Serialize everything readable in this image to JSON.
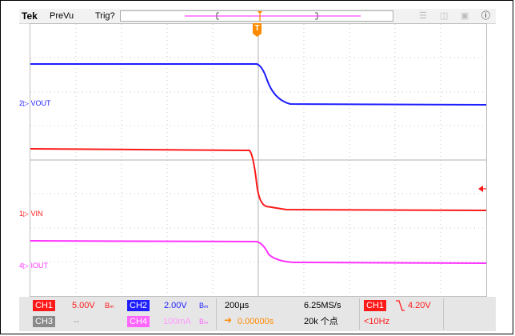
{
  "header": {
    "brand": "Tek",
    "mode": "PreVu",
    "trigger_status": "Trig?",
    "trigger_marker": "T",
    "icons": [
      "wifi-icon",
      "network-icon",
      "clipboard-icon",
      "help-icon"
    ]
  },
  "channels": {
    "ch2": {
      "marker": "2",
      "label": "VOUT",
      "color": "#1e1eff"
    },
    "ch1": {
      "marker": "1",
      "label": "VIN",
      "color": "#ff1a1a"
    },
    "ch4": {
      "marker": "4",
      "label": "IOUT",
      "color": "#ff33ff"
    }
  },
  "status": {
    "ch1_label": "CH1",
    "ch1_scale": "5.00V",
    "ch1_coupling": "Bₘ",
    "ch2_label": "CH2",
    "ch2_scale": "2.00V",
    "ch2_coupling": "Bₘ",
    "ch3_label": "CH3",
    "ch3_scale": "--",
    "ch4_label": "CH4",
    "ch4_scale": "100mA",
    "ch4_coupling": "Bₘ",
    "timebase": "200µs",
    "sample_rate": "6.25MS/s",
    "position": "0.00000s",
    "record_length": "20k 个点",
    "trigger_source": "CH1",
    "trigger_level": "4.20V",
    "trigger_freq": "<10Hz"
  },
  "colors": {
    "ch1": "#ff1a1a",
    "ch2": "#1e1eff",
    "ch3": "#808080",
    "ch4": "#ff33ff",
    "trigger": "#ff8a00"
  }
}
